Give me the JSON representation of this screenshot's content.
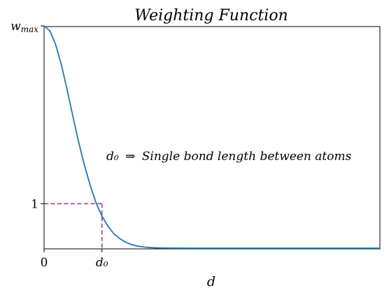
{
  "chart_data": {
    "type": "line",
    "title": "Weighting Function",
    "xlabel": "d",
    "ylabel": "",
    "xlim": [
      0,
      5.8
    ],
    "ylim": [
      0,
      5.0
    ],
    "x_ticks": [
      {
        "value": 0,
        "label": "0"
      },
      {
        "value": 1,
        "label": "d₀"
      }
    ],
    "y_ticks": [
      {
        "value": 1,
        "label": "1"
      },
      {
        "value": 5,
        "label": "w_max"
      }
    ],
    "y_tick_text": {
      "w": "w",
      "sub": "max"
    },
    "series": [
      {
        "color": "#1f77b4",
        "x": [
          0,
          0.1,
          0.2,
          0.3,
          0.4,
          0.5,
          0.6,
          0.7,
          0.8,
          0.9,
          1.0,
          1.1,
          1.2,
          1.3,
          1.4,
          1.5,
          1.6,
          1.7,
          1.8,
          1.9,
          2.0,
          2.2,
          2.5,
          3.0,
          3.5,
          4.0,
          4.5,
          5.0,
          5.5,
          5.8
        ],
        "y": [
          5.0,
          4.89,
          4.58,
          4.12,
          3.55,
          2.95,
          2.37,
          1.85,
          1.4,
          1.01,
          0.72,
          0.5,
          0.33,
          0.22,
          0.14,
          0.085,
          0.05,
          0.03,
          0.017,
          0.009,
          0.005,
          0.001,
          0,
          0,
          0,
          0,
          0,
          0,
          0,
          0
        ]
      }
    ],
    "reference_lines": {
      "color": "#a03c96",
      "point": {
        "x": 1,
        "y": 1
      }
    },
    "annotation": {
      "text_sub": "d₀",
      "arrow": "⇒",
      "text": "Single bond length between atoms"
    },
    "grid": false,
    "legend": "none"
  }
}
